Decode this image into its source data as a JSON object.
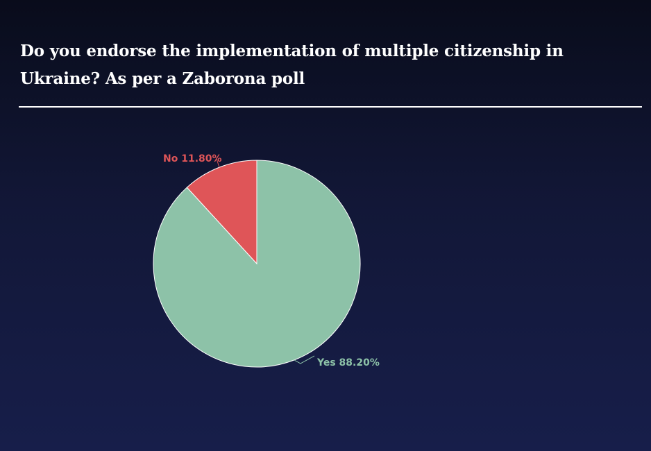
{
  "header": {
    "title": "Do you endorse the implementation of multiple citizenship in Ukraine? As per a Zaborona poll"
  },
  "chart_data": {
    "type": "pie",
    "title": "Do you endorse the implementation of multiple citizenship in Ukraine? As per a Zaborona poll",
    "slices": [
      {
        "label": "Yes",
        "value": 88.2,
        "display": "Yes 88.20%",
        "color": "#8dc2a8"
      },
      {
        "label": "No",
        "value": 11.8,
        "display": "No 11.80%",
        "color": "#df5558"
      }
    ]
  }
}
